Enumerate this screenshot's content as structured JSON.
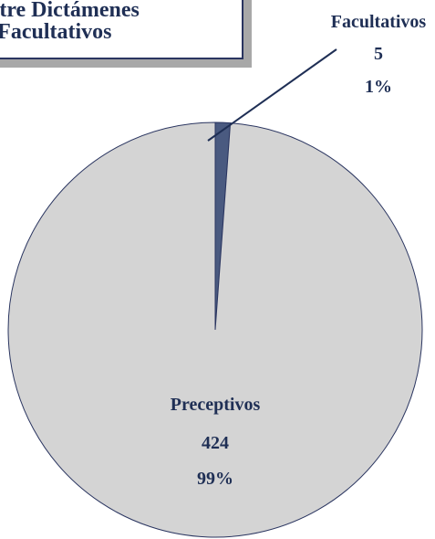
{
  "chart_data": {
    "type": "pie",
    "title_lines": [
      "Relación entre Dictámenes",
      "Preceptivos y Facultativos"
    ],
    "slices": [
      {
        "name": "Preceptivos",
        "value": 424,
        "percent": "99%",
        "color": "#d4d4d4"
      },
      {
        "name": "Facultativos",
        "value": 5,
        "percent": "1%",
        "color": "#4a5a80"
      }
    ]
  },
  "colors": {
    "text": "#1f2f55",
    "title_border": "#2a3560",
    "title_shadow": "#a8a8a8",
    "pie_outline": "#2a3560"
  }
}
